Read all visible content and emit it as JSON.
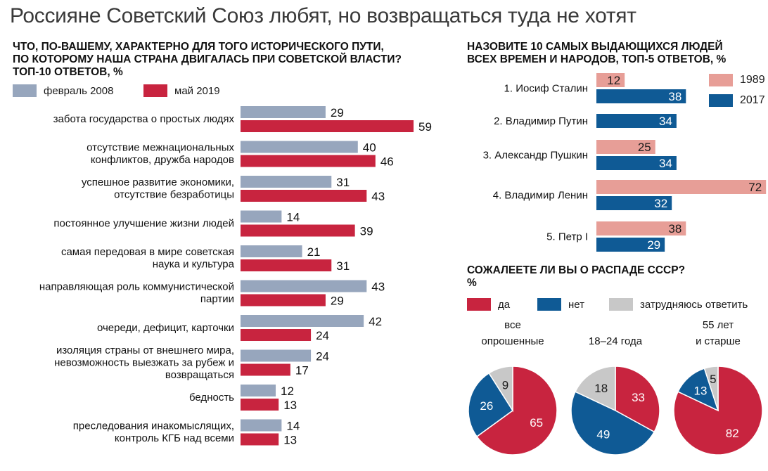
{
  "title": "Россияне Советский Союз любят, но возвращаться туда не хотят",
  "colors": {
    "grey": "#97a6bd",
    "red": "#c8243f",
    "blue": "#0f5a95",
    "pink": "#e79e97",
    "light": "#c8c8c8"
  },
  "left": {
    "title_line1": "ЧТО, ПО-ВАШЕМУ, ХАРАКТЕРНО ДЛЯ ТОГО ИСТОРИЧЕСКОГО ПУТИ,",
    "title_line2": "ПО КОТОРОМУ НАША СТРАНА ДВИГАЛАСЬ ПРИ СОВЕТСКОЙ ВЛАСТИ?",
    "title_line3": "ТОП-10 ОТВЕТОВ, %",
    "legend_2008": "февраль 2008",
    "legend_2019": "май 2019"
  },
  "right_top": {
    "title_line1": "НАЗОВИТЕ 10 САМЫХ ВЫДАЮЩИХСЯ ЛЮДЕЙ",
    "title_line2": "ВСЕХ ВРЕМЕН И НАРОДОВ, ТОП-5 ОТВЕТОВ, %",
    "legend_1989": "1989",
    "legend_2017": "2017"
  },
  "right_bottom": {
    "title_line1": "СОЖАЛЕЕТЕ ЛИ ВЫ О РАСПАДЕ СССР?",
    "title_line2": "%",
    "legend_yes": "да",
    "legend_no": "нет",
    "legend_hard": "затрудняюсь ответить"
  },
  "chart_data": [
    {
      "type": "bar",
      "orientation": "horizontal",
      "title": "ЧТО, ПО-ВАШЕМУ, ХАРАКТЕРНО ДЛЯ ТОГО ИСТОРИЧЕСКОГО ПУТИ, ПО КОТОРОМУ НАША СТРАНА ДВИГАЛАСЬ ПРИ СОВЕТСКОЙ ВЛАСТИ? ТОП-10 ОТВЕТОВ, %",
      "categories": [
        [
          "забота государства о простых людях"
        ],
        [
          "отсутствие межнациональных",
          "конфликтов, дружба народов"
        ],
        [
          "успешное развитие экономики,",
          "отсутствие безработицы"
        ],
        [
          "постоянное улучшение жизни людей"
        ],
        [
          "самая передовая в мире советская",
          "наука и культура"
        ],
        [
          "направляющая роль коммунистической",
          "партии"
        ],
        [
          "очереди, дефицит, карточки"
        ],
        [
          "изоляция страны от внешнего мира,",
          "невозможность выезжать за рубеж и",
          "возвращаться"
        ],
        [
          "бедность"
        ],
        [
          "преследования инакомыслящих,",
          "контроль КГБ над всеми"
        ]
      ],
      "series": [
        {
          "name": "февраль 2008",
          "values": [
            29,
            40,
            31,
            14,
            21,
            43,
            42,
            24,
            12,
            14
          ]
        },
        {
          "name": "май 2019",
          "values": [
            59,
            46,
            43,
            39,
            31,
            29,
            24,
            17,
            13,
            13
          ]
        }
      ]
    },
    {
      "type": "bar",
      "orientation": "horizontal",
      "title": "НАЗОВИТЕ 10 САМЫХ ВЫДАЮЩИХСЯ ЛЮДЕЙ ВСЕХ ВРЕМЕН И НАРОДОВ, ТОП-5 ОТВЕТОВ, %",
      "categories": [
        "1. Иосиф Сталин",
        "2. Владимир Путин",
        "3. Александр Пушкин",
        "4. Владимир Ленин",
        "5. Петр I"
      ],
      "series": [
        {
          "name": "1989",
          "values": [
            12,
            null,
            25,
            72,
            38
          ]
        },
        {
          "name": "2017",
          "values": [
            38,
            34,
            34,
            32,
            29
          ]
        }
      ]
    },
    {
      "type": "pie",
      "title": "СОЖАЛЕЕТЕ ЛИ ВЫ О РАСПАДЕ СССР? %",
      "categories": [
        "да",
        "нет",
        "затрудняюсь ответить"
      ],
      "pies": [
        {
          "label": [
            "все",
            "опрошенные"
          ],
          "values": [
            65,
            26,
            9
          ]
        },
        {
          "label": [
            "18–24 года"
          ],
          "values": [
            33,
            49,
            18
          ]
        },
        {
          "label": [
            "55 лет",
            "и старше"
          ],
          "values": [
            82,
            13,
            5
          ]
        }
      ]
    }
  ]
}
